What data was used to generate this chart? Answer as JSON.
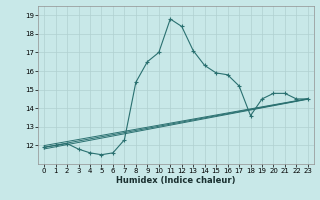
{
  "xlabel": "Humidex (Indice chaleur)",
  "ylabel": "",
  "background_color": "#c8e8e8",
  "grid_color": "#b0d0d0",
  "line_color": "#2a7070",
  "xlim": [
    -0.5,
    23.5
  ],
  "ylim": [
    11.0,
    19.5
  ],
  "xticks": [
    0,
    1,
    2,
    3,
    4,
    5,
    6,
    7,
    8,
    9,
    10,
    11,
    12,
    13,
    14,
    15,
    16,
    17,
    18,
    19,
    20,
    21,
    22,
    23
  ],
  "yticks": [
    12,
    13,
    14,
    15,
    16,
    17,
    18,
    19
  ],
  "series": [
    {
      "x": [
        0,
        1,
        2,
        3,
        4,
        5,
        6,
        7,
        8,
        9,
        10,
        11,
        12,
        13,
        14,
        15,
        16,
        17,
        18,
        19,
        20,
        21,
        22,
        23
      ],
      "y": [
        11.9,
        12.0,
        12.1,
        11.8,
        11.6,
        11.5,
        11.6,
        12.3,
        15.4,
        16.5,
        17.0,
        18.8,
        18.4,
        17.1,
        16.3,
        15.9,
        15.8,
        15.2,
        13.6,
        14.5,
        14.8,
        14.8,
        14.5,
        14.5
      ]
    },
    {
      "x": [
        0,
        23
      ],
      "y": [
        11.9,
        14.5
      ]
    },
    {
      "x": [
        0,
        23
      ],
      "y": [
        11.9,
        14.5
      ]
    },
    {
      "x": [
        0,
        23
      ],
      "y": [
        11.9,
        14.5
      ]
    }
  ]
}
